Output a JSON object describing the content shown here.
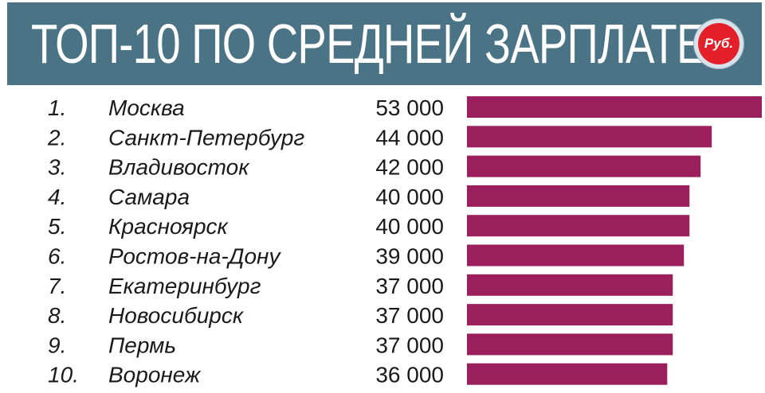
{
  "header": {
    "title": "ТОП-10 ПО СРЕДНЕЙ ЗАРПЛАТЕ",
    "badge": "Руб."
  },
  "colors": {
    "header_bg": "#4a7486",
    "bar": "#9b1f5d",
    "badge_red": "#e3202a"
  },
  "chart_data": {
    "type": "bar",
    "orientation": "horizontal",
    "title": "ТОП-10 ПО СРЕДНЕЙ ЗАРПЛАТЕ",
    "unit": "Руб.",
    "ranks": [
      "1.",
      "2.",
      "3.",
      "4.",
      "5.",
      "6.",
      "7.",
      "8.",
      "9.",
      "10."
    ],
    "categories": [
      "Москва",
      "Санкт-Петербург",
      "Владивосток",
      "Самара",
      "Красноярск",
      "Ростов-на-Дону",
      "Екатеринбург",
      "Новосибирск",
      "Пермь",
      "Воронеж"
    ],
    "value_labels": [
      "53 000",
      "44 000",
      "42 000",
      "40 000",
      "40 000",
      "39 000",
      "37 000",
      "37 000",
      "37 000",
      "36 000"
    ],
    "values": [
      53000,
      44000,
      42000,
      40000,
      40000,
      39000,
      37000,
      37000,
      37000,
      36000
    ],
    "xlim": [
      0,
      53000
    ],
    "grid": false,
    "legend": "none"
  }
}
